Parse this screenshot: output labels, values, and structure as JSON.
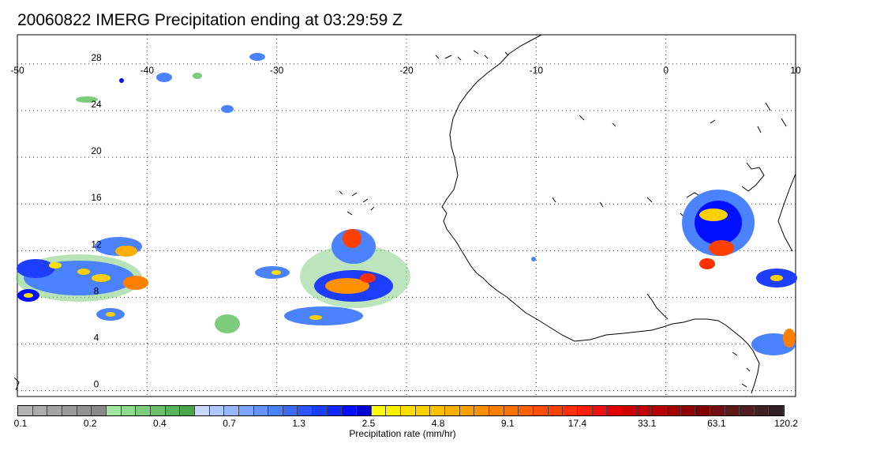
{
  "title": "20060822 IMERG Precipitation ending at 03:29:59 Z",
  "map": {
    "lon_range": [
      -50,
      10
    ],
    "lat_range": [
      -0.5,
      30.5
    ],
    "lon_ticks": [
      "-50",
      "-40",
      "-30",
      "-20",
      "-10",
      "0",
      "10"
    ],
    "lat_ticks": [
      "0",
      "4",
      "8",
      "12",
      "16",
      "20",
      "24",
      "28"
    ],
    "gridlines": "dotted"
  },
  "colorbar": {
    "title": "Precipitation rate (mm/hr)",
    "tick_labels": [
      "0.1",
      "0.2",
      "0.4",
      "0.7",
      "1.3",
      "2.5",
      "4.8",
      "9.1",
      "17.4",
      "33.1",
      "63.1",
      "120.2"
    ],
    "colors": [
      "#b4b4b4",
      "#ababab",
      "#a3a3a3",
      "#9a9a9a",
      "#929292",
      "#898989",
      "#a0e6a0",
      "#8ed98e",
      "#7ccc7c",
      "#6bbf6b",
      "#5ab25a",
      "#49a549",
      "#c8d8ff",
      "#afc7ff",
      "#96b6ff",
      "#7da5ff",
      "#6494ff",
      "#4b83ff",
      "#3c6cff",
      "#2d55ff",
      "#1e3eff",
      "#0f27ff",
      "#0010ff",
      "#0000d0",
      "#ffff00",
      "#fff000",
      "#ffe000",
      "#ffd000",
      "#ffc000",
      "#ffb000",
      "#ffa000",
      "#ff9000",
      "#ff8000",
      "#ff7000",
      "#ff6000",
      "#ff5000",
      "#ff4000",
      "#ff3000",
      "#ff2000",
      "#f01010",
      "#e00000",
      "#d00000",
      "#c00000",
      "#b00000",
      "#a00000",
      "#900000",
      "#800000",
      "#701010",
      "#601818",
      "#502020",
      "#402020",
      "#302020"
    ]
  }
}
